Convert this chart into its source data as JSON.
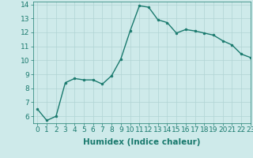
{
  "x": [
    0,
    1,
    2,
    3,
    4,
    5,
    6,
    7,
    8,
    9,
    10,
    11,
    12,
    13,
    14,
    15,
    16,
    17,
    18,
    19,
    20,
    21,
    22,
    23
  ],
  "y": [
    6.5,
    5.7,
    6.0,
    8.4,
    8.7,
    8.6,
    8.6,
    8.3,
    8.9,
    10.1,
    12.1,
    13.9,
    13.8,
    12.9,
    12.7,
    11.95,
    12.2,
    12.1,
    11.95,
    11.8,
    11.4,
    11.1,
    10.45,
    10.2
  ],
  "line_color": "#1a7a6e",
  "marker": "o",
  "markersize": 2.0,
  "linewidth": 1.0,
  "bg_color": "#ceeaea",
  "grid_color": "#b0d4d4",
  "xlabel": "Humidex (Indice chaleur)",
  "xlim": [
    -0.5,
    23
  ],
  "ylim": [
    5.5,
    14.2
  ],
  "xticks": [
    0,
    1,
    2,
    3,
    4,
    5,
    6,
    7,
    8,
    9,
    10,
    11,
    12,
    13,
    14,
    15,
    16,
    17,
    18,
    19,
    20,
    21,
    22,
    23
  ],
  "yticks": [
    6,
    7,
    8,
    9,
    10,
    11,
    12,
    13,
    14
  ],
  "tick_fontsize": 6.5,
  "xlabel_fontsize": 7.5,
  "xlabel_fontweight": "bold"
}
